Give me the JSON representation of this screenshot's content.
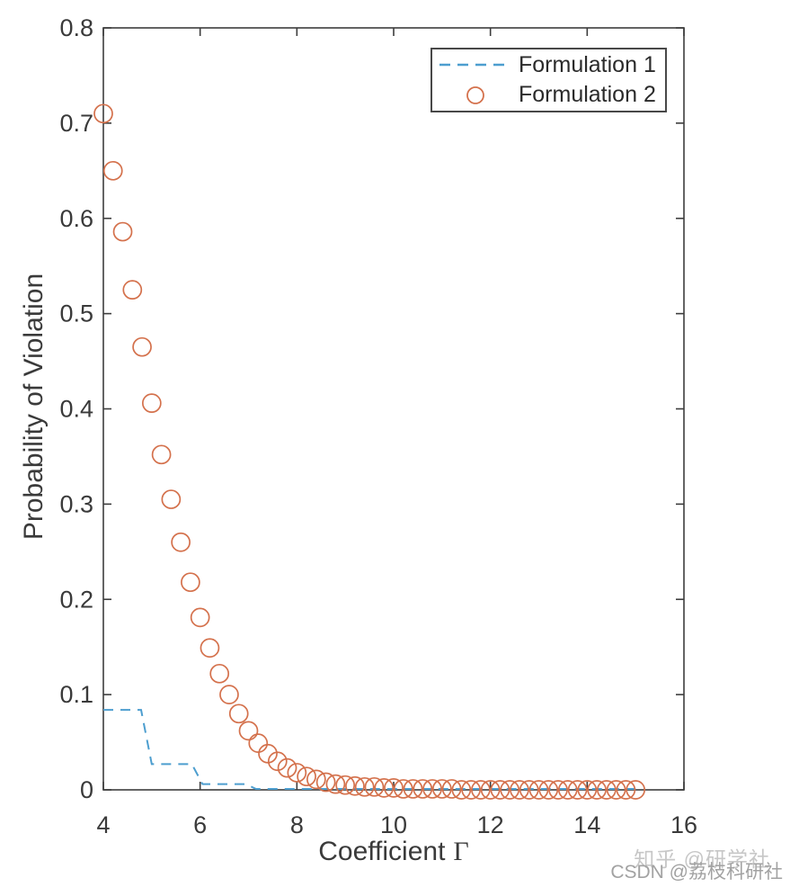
{
  "figure": {
    "background": "#ffffff",
    "axis_color": "#3d3d3d",
    "text_color": "#3a3a3a"
  },
  "chart_data": {
    "type": "scatter",
    "title": "",
    "xlabel": "Coefficient Γ",
    "xlabel_text": "Coefficient",
    "xlabel_symbol": "Γ",
    "ylabel": "Probability of Violation",
    "xlim": [
      4,
      16
    ],
    "ylim": [
      0,
      0.8
    ],
    "xtick_values": [
      4,
      6,
      8,
      10,
      12,
      14,
      16
    ],
    "xtick_labels": [
      "4",
      "6",
      "8",
      "10",
      "12",
      "14",
      "16"
    ],
    "ytick_values": [
      0,
      0.1,
      0.2,
      0.3,
      0.4,
      0.5,
      0.6,
      0.7,
      0.8
    ],
    "ytick_labels": [
      "0",
      "0.1",
      "0.2",
      "0.3",
      "0.4",
      "0.5",
      "0.6",
      "0.7",
      "0.8"
    ],
    "grid": false,
    "legend_position": "top-right-inside",
    "series": [
      {
        "name": "Formulation 1",
        "style": "dashed-line",
        "color": "#4D9ECF",
        "points": [
          [
            4,
            0.084
          ],
          [
            4.78,
            0.084
          ],
          [
            5.0,
            0.027
          ],
          [
            5.83,
            0.027
          ],
          [
            6.05,
            0.006
          ],
          [
            6.95,
            0.006
          ],
          [
            7.15,
            0.001
          ],
          [
            15,
            0.001
          ]
        ]
      },
      {
        "name": "Formulation 2",
        "style": "circle-markers",
        "color": "#D4714C",
        "x_start": 4.0,
        "x_step": 0.2,
        "values": [
          0.71,
          0.65,
          0.586,
          0.525,
          0.465,
          0.406,
          0.352,
          0.305,
          0.26,
          0.218,
          0.181,
          0.149,
          0.122,
          0.1,
          0.08,
          0.062,
          0.049,
          0.038,
          0.03,
          0.023,
          0.018,
          0.014,
          0.011,
          0.008,
          0.006,
          0.005,
          0.004,
          0.003,
          0.003,
          0.002,
          0.002,
          0.001,
          0.001,
          0.001,
          0.001,
          0.001,
          0.001,
          0.0,
          0.0,
          0.0,
          0.0,
          0.0,
          0.0,
          0.0,
          0.0,
          0.0,
          0.0,
          0.0,
          0.0,
          0.0,
          0.0,
          0.0,
          0.0,
          0.0,
          0.0,
          0.0
        ]
      }
    ]
  },
  "watermark": {
    "line1": "知乎 @研学社",
    "line2": "CSDN @荔枝科研社"
  }
}
